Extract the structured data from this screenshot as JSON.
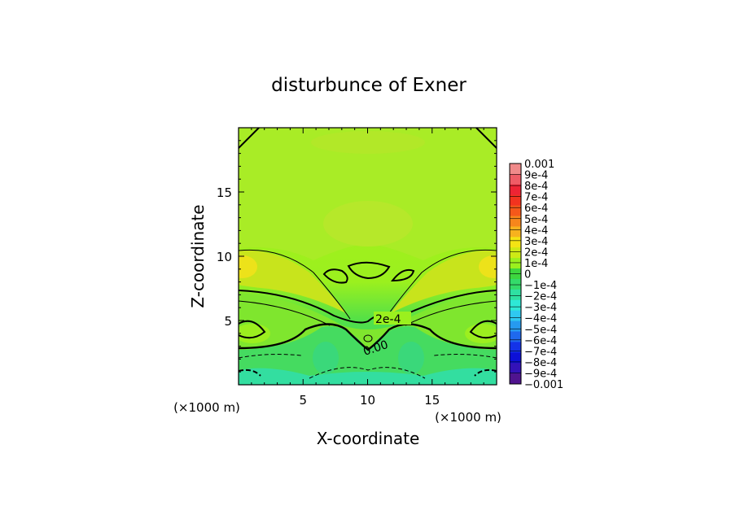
{
  "chart_data": {
    "type": "heatmap",
    "title": "disturbunce of Exner",
    "xlabel": "X-coordinate",
    "ylabel": "Z-coordinate",
    "x_unit": "(×1000 m)",
    "xlim": [
      0,
      20
    ],
    "ylim": [
      0,
      20
    ],
    "x_ticks": [
      "5",
      "10",
      "15"
    ],
    "x_tick_values": [
      5,
      10,
      15
    ],
    "y_ticks": [
      "5",
      "10",
      "15"
    ],
    "y_tick_values": [
      5,
      10,
      15
    ],
    "colorbar": {
      "labels": [
        "0.001",
        "9e-4",
        "8e-4",
        "7e-4",
        "6e-4",
        "5e-4",
        "4e-4",
        "3e-4",
        "2e-4",
        "1e-4",
        "0",
        "−1e-4",
        "−2e-4",
        "−3e-4",
        "−4e-4",
        "−5e-4",
        "−6e-4",
        "−7e-4",
        "−8e-4",
        "−9e-4",
        "−0.001"
      ],
      "colors": [
        "#f08a8a",
        "#ef5c66",
        "#ee2434",
        "#f2331f",
        "#f5581a",
        "#f7861c",
        "#f7b21e",
        "#f4e414",
        "#cdea16",
        "#9bf01e",
        "#3dd63e",
        "#34db6a",
        "#2fe0a2",
        "#2ee8d6",
        "#2fc8f0",
        "#269af0",
        "#1f69ee",
        "#1433e8",
        "#0d10d6",
        "#3312b8",
        "#50148f"
      ]
    },
    "contour_labels": [
      "2e-4",
      "0.00"
    ],
    "colors": {
      "dominant_field": "#a4ef1a",
      "upper_field": "#a8ed24",
      "high_lobe": "#f4e414",
      "mid_band": "#9bf01e",
      "negative_zone": "#3fd96a",
      "bottom_zone": "#34dd9a"
    }
  }
}
